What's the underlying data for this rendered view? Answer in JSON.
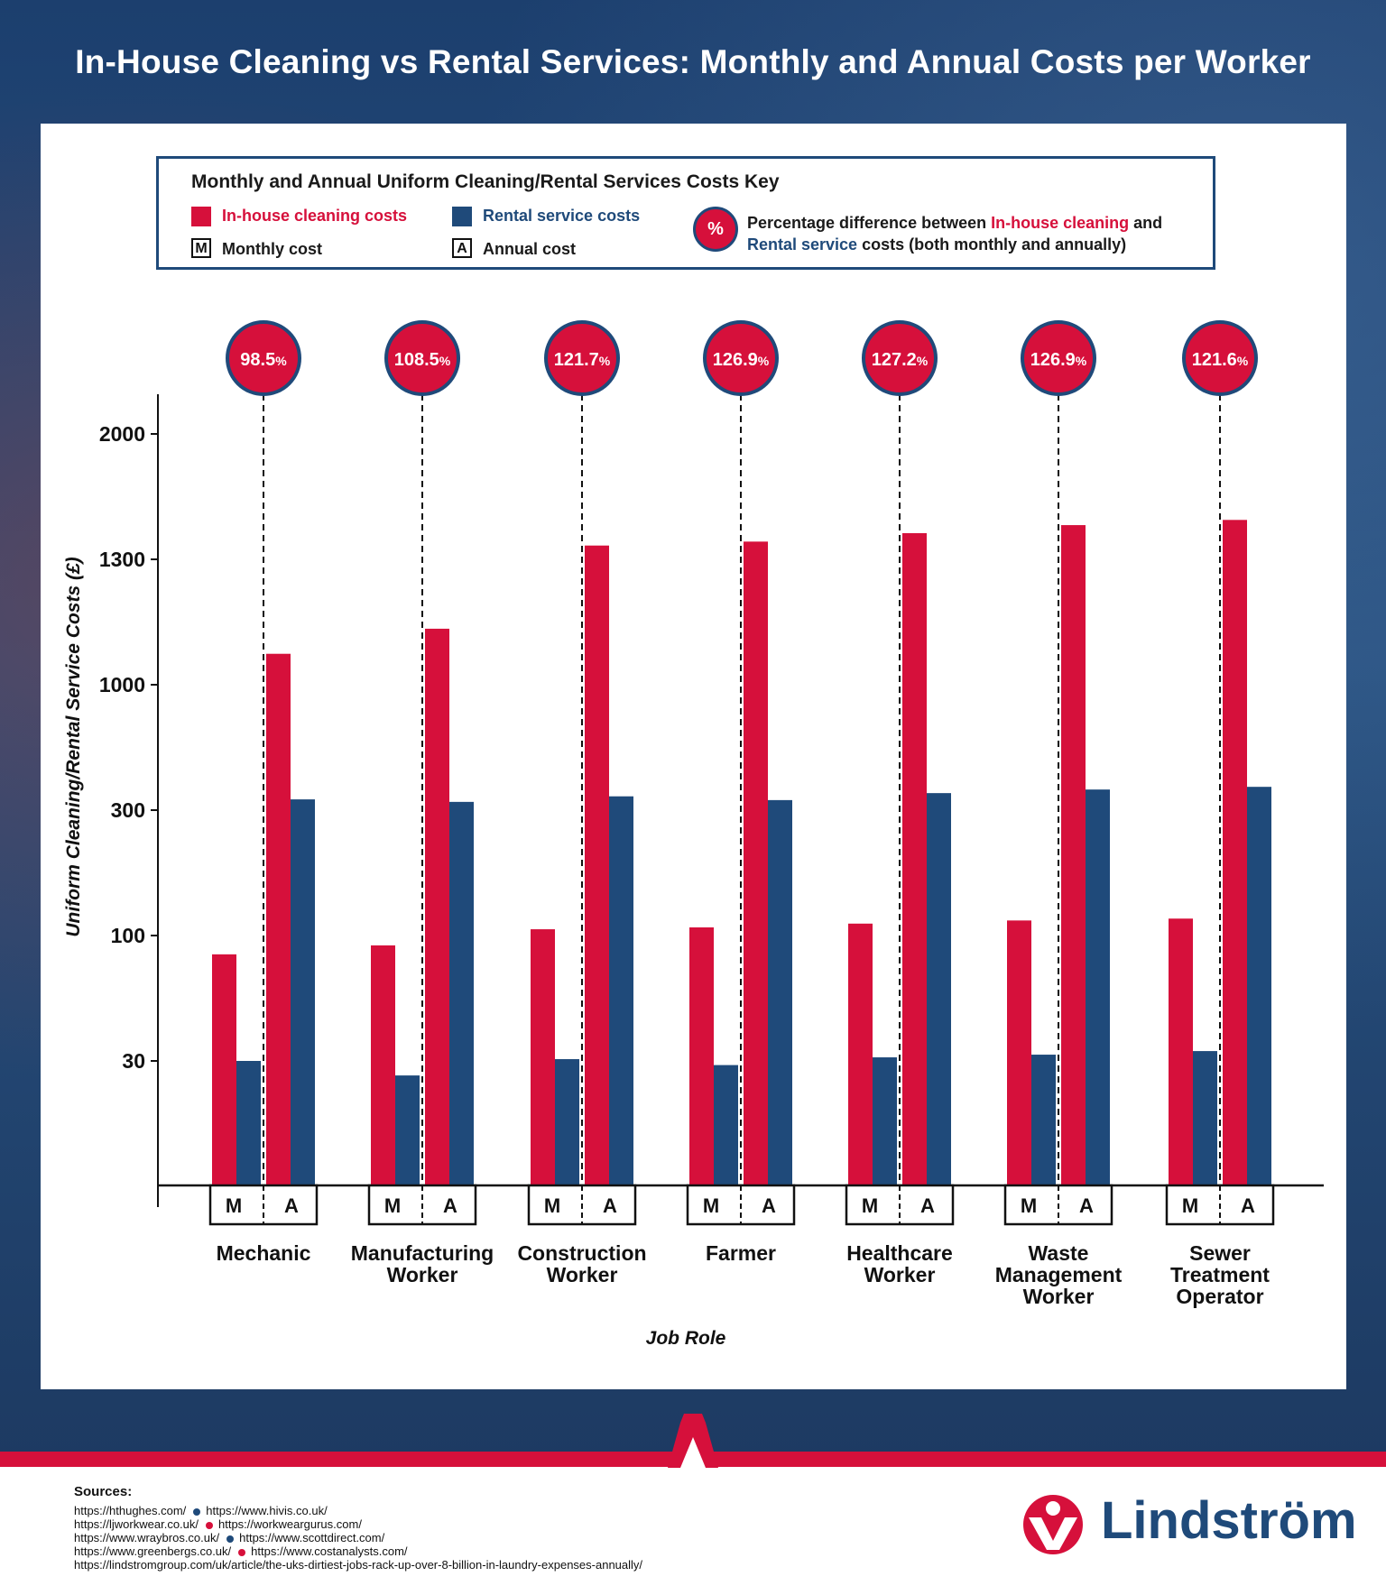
{
  "title": "In-House Cleaning vs Rental Services: Monthly and Annual Costs per Worker",
  "legend": {
    "title": "Monthly and Annual Uniform Cleaning/Rental Services Costs Key",
    "inhouse_label": "In-house cleaning costs",
    "rental_label": "Rental service costs",
    "monthly_letter": "M",
    "monthly_label": "Monthly cost",
    "annual_letter": "A",
    "annual_label": "Annual cost",
    "pct_symbol": "%",
    "pct_desc_1a": "Percentage difference between ",
    "pct_desc_1b": "In-house cleaning",
    "pct_desc_1c": " and",
    "pct_desc_2a": "Rental service",
    "pct_desc_2b": " costs (both monthly and annually)"
  },
  "colors": {
    "inhouse": "#d6103b",
    "rental": "#1f4a7a"
  },
  "chart_data": {
    "type": "bar",
    "title": "In-House Cleaning vs Rental Services: Monthly and Annual Costs per Worker",
    "xlabel": "Job Role",
    "ylabel": "Uniform Cleaning/Rental Service Costs (£)",
    "yticks": [
      "30",
      "100",
      "300",
      "1000",
      "1300",
      "2000"
    ],
    "categories": [
      [
        "Mechanic"
      ],
      [
        "Manufacturing",
        "Worker"
      ],
      [
        "Construction",
        "Worker"
      ],
      [
        "Farmer"
      ],
      [
        "Healthcare",
        "Worker"
      ],
      [
        "Waste",
        "Management",
        "Worker"
      ],
      [
        "Sewer",
        "Treatment",
        "Operator"
      ]
    ],
    "period_labels": [
      "M",
      "A"
    ],
    "series": [
      {
        "name": "In-house cleaning costs (Monthly)",
        "values": [
          89.5,
          94.5,
          110,
          113,
          119,
          124,
          127
        ]
      },
      {
        "name": "Rental service costs (Monthly)",
        "values": [
          30,
          26.5,
          31,
          29,
          32,
          33.5,
          35.5
        ]
      },
      {
        "name": "In-house cleaning costs (Annual)",
        "values": [
          1074,
          1134,
          1377,
          1399,
          1446,
          1491,
          1520
        ]
      },
      {
        "name": "Rental service costs (Annual)",
        "values": [
          360,
          346,
          377,
          356,
          395,
          415,
          430
        ]
      }
    ],
    "percent_differences": [
      "98.5",
      "108.5",
      "121.7",
      "126.9",
      "127.2",
      "126.9",
      "121.6"
    ],
    "percent_suffix": "%"
  },
  "sources": {
    "title": "Sources:",
    "lines": [
      [
        "https://hthughes.com/",
        "https://www.hivis.co.uk/"
      ],
      [
        "https://ljworkwear.co.uk/",
        "https://workweargurus.com/"
      ],
      [
        "https://www.wraybros.co.uk/",
        "https://www.scottdirect.com/"
      ],
      [
        "https://www.greenbergs.co.uk/",
        "https://www.costanalysts.com/"
      ],
      [
        "https://lindstromgroup.com/uk/article/the-uks-dirtiest-jobs-rack-up-over-8-billion-in-laundry-expenses-annually/"
      ]
    ]
  },
  "brand": {
    "name": "Lindström"
  }
}
